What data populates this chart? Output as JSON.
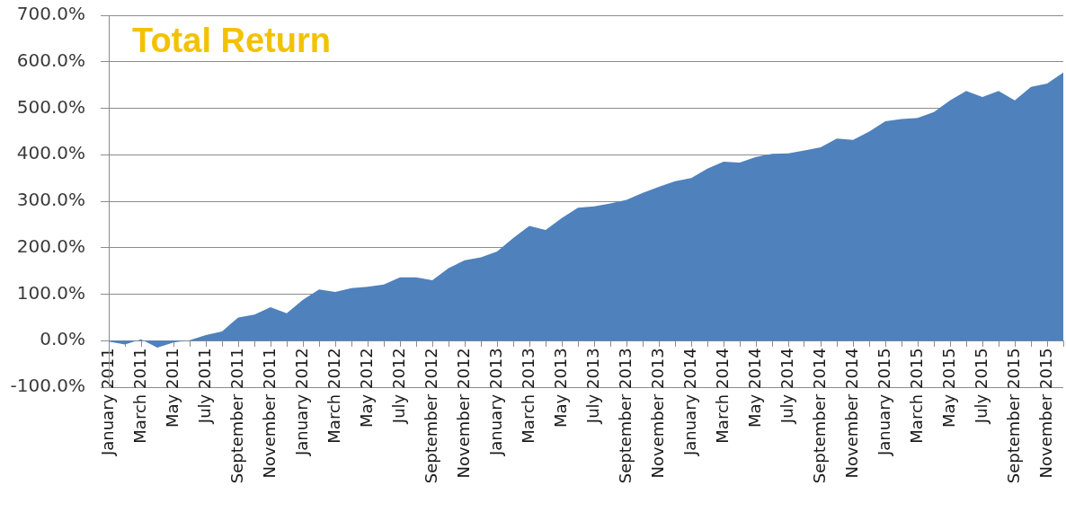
{
  "chart_data": {
    "type": "area",
    "title": "Total Return",
    "categories": [
      "January 2011",
      null,
      "March 2011",
      null,
      "May 2011",
      null,
      "July 2011",
      null,
      "September 2011",
      null,
      "November 2011",
      null,
      "January 2012",
      null,
      "March 2012",
      null,
      "May 2012",
      null,
      "July 2012",
      null,
      "September 2012",
      null,
      "November 2012",
      null,
      "January 2013",
      null,
      "March 2013",
      null,
      "May 2013",
      null,
      "July 2013",
      null,
      "September 2013",
      null,
      "November 2013",
      null,
      "January 2014",
      null,
      "March 2014",
      null,
      "May 2014",
      null,
      "July 2014",
      null,
      "September 2014",
      null,
      "November 2014",
      null,
      "January 2015",
      null,
      "March 2015",
      null,
      "May 2015",
      null,
      "July 2015",
      null,
      "September 2015",
      null,
      "November 2015",
      null
    ],
    "values": [
      -2,
      -8,
      3,
      -15,
      -4,
      1,
      12,
      20,
      50,
      56,
      72,
      59,
      88,
      110,
      105,
      113,
      116,
      121,
      136,
      136,
      130,
      156,
      173,
      179,
      192,
      221,
      247,
      238,
      264,
      286,
      289,
      295,
      303,
      318,
      331,
      343,
      350,
      370,
      385,
      383,
      395,
      402,
      403,
      409,
      416,
      435,
      432,
      450,
      472,
      477,
      479,
      492,
      517,
      537,
      524,
      537,
      517,
      546,
      553,
      577
    ],
    "color": "#4f81bd",
    "ylim": [
      -100,
      700
    ],
    "yticks": [
      {
        "value": -100,
        "label": "-100.0%"
      },
      {
        "value": 0,
        "label": "0.0%"
      },
      {
        "value": 100,
        "label": "100.0%"
      },
      {
        "value": 200,
        "label": "200.0%"
      },
      {
        "value": 300,
        "label": "300.0%"
      },
      {
        "value": 400,
        "label": "400.0%"
      },
      {
        "value": 500,
        "label": "500.0%"
      },
      {
        "value": 600,
        "label": "600.0%"
      },
      {
        "value": 700,
        "label": "700.0%"
      }
    ],
    "grid": "y"
  }
}
